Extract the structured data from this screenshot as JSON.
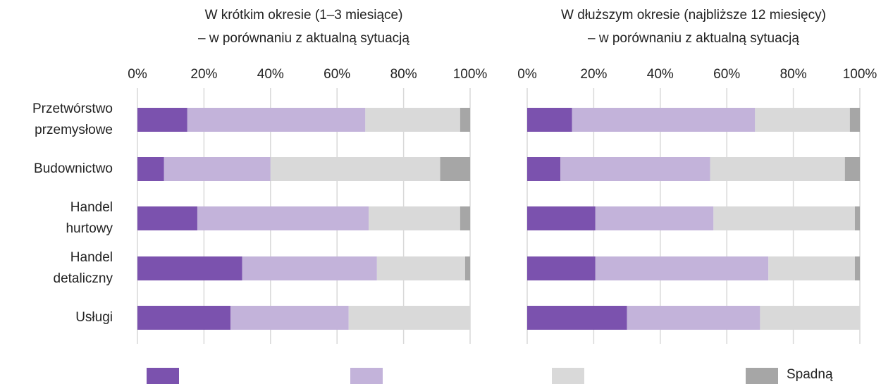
{
  "chart_data": [
    {
      "type": "stacked_barh",
      "title": "W krótkim okresie (1–3 miesiące)",
      "subtitle": "– w porównaniu z aktualną sytuacją",
      "categories": [
        "Przetwórstwo przemysłowe",
        "Budownictwo",
        "Handel hurtowy",
        "Handel detaliczny",
        "Usługi"
      ],
      "series": [
        {
          "name": null,
          "color": "#7b52ae",
          "values": [
            15,
            8,
            18,
            31.5,
            28
          ]
        },
        {
          "name": null,
          "color": "#c3b3da",
          "values": [
            53.5,
            32,
            51.5,
            40.5,
            35.5
          ]
        },
        {
          "name": null,
          "color": "#d9d9d9",
          "values": [
            28.5,
            51,
            27.5,
            26.5,
            36.5
          ]
        },
        {
          "name": "Spadną",
          "color": "#a6a6a6",
          "values": [
            3,
            9,
            3,
            1.5,
            0
          ]
        }
      ],
      "xlim": [
        0,
        100
      ],
      "xticks": [
        {
          "value": 0,
          "label": "0%"
        },
        {
          "value": 20,
          "label": "20%"
        },
        {
          "value": 40,
          "label": "40%"
        },
        {
          "value": 60,
          "label": "60%"
        },
        {
          "value": 80,
          "label": "80%"
        },
        {
          "value": 100,
          "label": "100%"
        }
      ],
      "grid": true
    },
    {
      "type": "stacked_barh",
      "title": "W dłuższym okresie (najbliższe 12 miesięcy)",
      "subtitle": "– w porównaniu z aktualną sytuacją",
      "series": [
        {
          "name": null,
          "color": "#7b52ae",
          "values": [
            13.5,
            10,
            20.5,
            20.5,
            30
          ]
        },
        {
          "name": null,
          "color": "#c3b3da",
          "values": [
            55,
            45,
            35.5,
            52,
            40
          ]
        },
        {
          "name": null,
          "color": "#d9d9d9",
          "values": [
            28.5,
            40.5,
            42.5,
            26,
            30
          ]
        },
        {
          "name": "Spadną",
          "color": "#a6a6a6",
          "values": [
            3,
            4.5,
            1.5,
            1.5,
            0
          ]
        }
      ],
      "xlim": [
        0,
        100
      ],
      "xticks": [
        {
          "value": 0,
          "label": "0%"
        },
        {
          "value": 20,
          "label": "20%"
        },
        {
          "value": 40,
          "label": "40%"
        },
        {
          "value": 60,
          "label": "60%"
        },
        {
          "value": 80,
          "label": "80%"
        },
        {
          "value": 100,
          "label": "100%"
        }
      ],
      "grid": true
    }
  ]
}
